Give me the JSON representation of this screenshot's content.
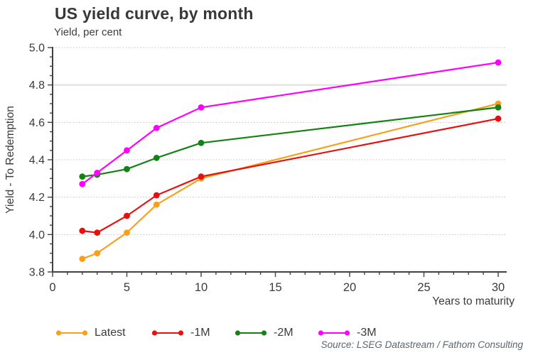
{
  "header": {
    "title": "US yield curve, by month",
    "subtitle": "Yield, per cent"
  },
  "chart_data": {
    "type": "line",
    "title": "US yield curve, by month",
    "subtitle": "Yield, per cent",
    "xlabel": "Years to maturity",
    "ylabel": "Yield - To Redemption",
    "x": [
      2,
      3,
      5,
      7,
      10,
      30
    ],
    "series": [
      {
        "name": "Latest",
        "color": "#F9A01B",
        "values": [
          3.87,
          3.9,
          4.01,
          4.16,
          4.3,
          4.7
        ]
      },
      {
        "name": "-1M",
        "color": "#EA0F0F",
        "values": [
          4.02,
          4.01,
          4.1,
          4.21,
          4.31,
          4.62
        ]
      },
      {
        "name": "-2M",
        "color": "#128212",
        "values": [
          4.31,
          4.32,
          4.35,
          4.41,
          4.49,
          4.68
        ]
      },
      {
        "name": "-3M",
        "color": "#FF00FF",
        "values": [
          4.27,
          4.33,
          4.45,
          4.57,
          4.68,
          4.92
        ]
      }
    ],
    "xlim": [
      0,
      30
    ],
    "ylim": [
      3.8,
      5.0
    ],
    "x_ticks": [
      0,
      5,
      10,
      15,
      20,
      25,
      30
    ],
    "y_ticks": [
      3.8,
      4.0,
      4.2,
      4.4,
      4.6,
      4.8,
      5.0
    ],
    "x_minor_step": 1,
    "y_minor_step": 0.05,
    "grid": "horizontal dotted, solid band at 4.8",
    "legend_position": "bottom"
  },
  "footer": {
    "source": "Source: LSEG Datastream / Fathom Consulting"
  }
}
